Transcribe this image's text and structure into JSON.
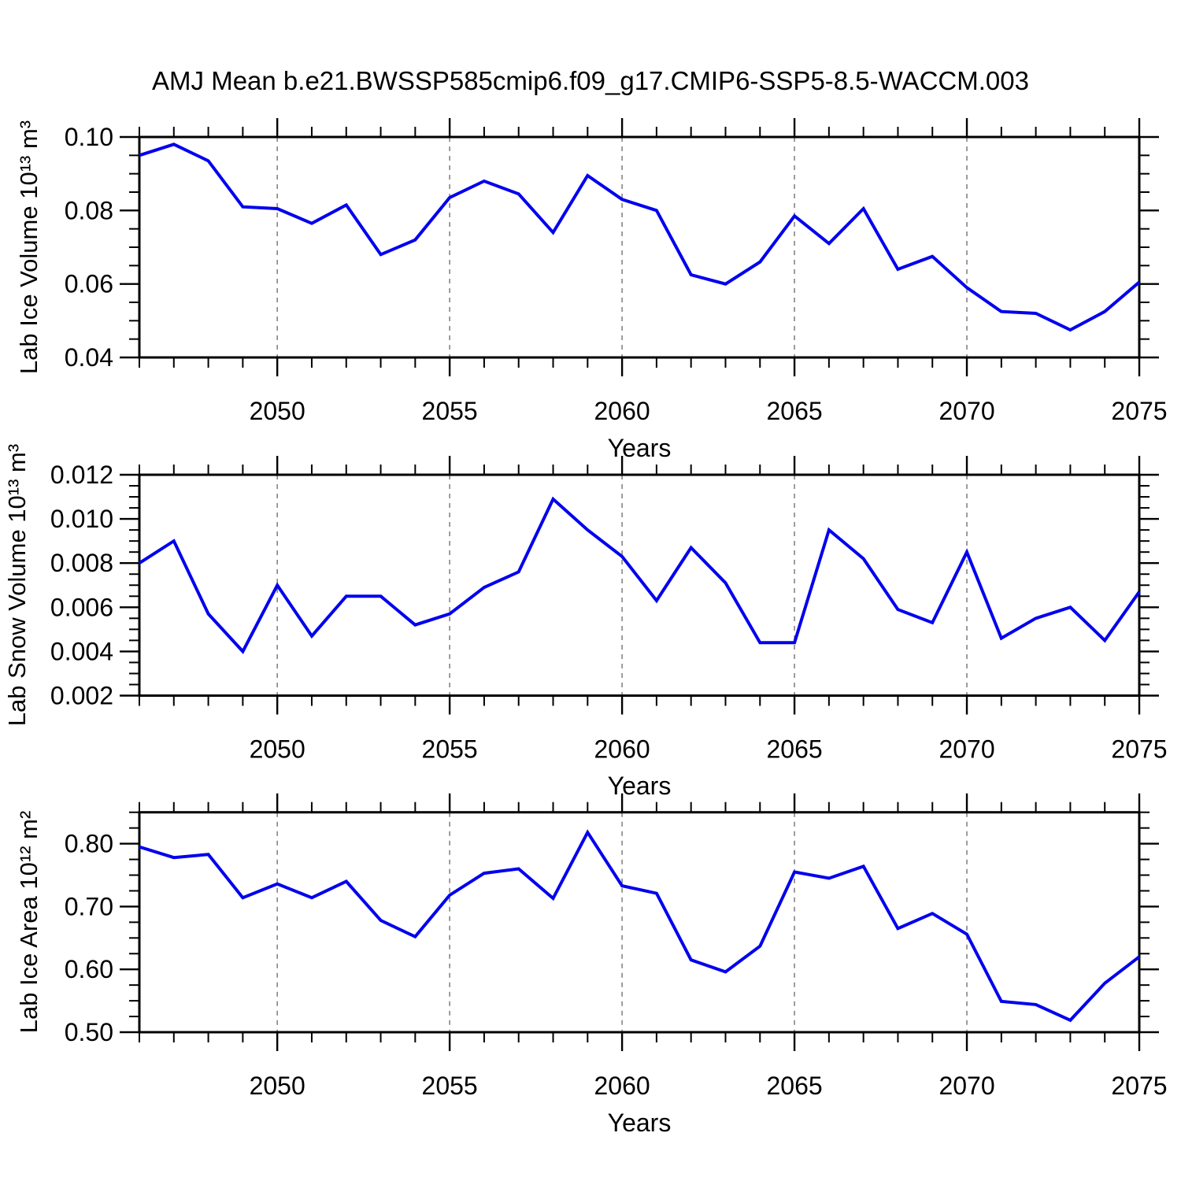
{
  "title": "AMJ Mean b.e21.BWSSP585cmip6.f09_g17.CMIP6-SSP5-8.5-WACCM.003",
  "line_color": "#0000EE",
  "grid_color": "#848484",
  "frame_color": "#000000",
  "chart_data": [
    {
      "type": "line",
      "ylabel": "Lab Ice Volume 10¹³ m³",
      "xlabel": "Years",
      "x": [
        2046,
        2047,
        2048,
        2049,
        2050,
        2051,
        2052,
        2053,
        2054,
        2055,
        2056,
        2057,
        2058,
        2059,
        2060,
        2061,
        2062,
        2063,
        2064,
        2065,
        2066,
        2067,
        2068,
        2069,
        2070,
        2071,
        2072,
        2073,
        2074,
        2075
      ],
      "values": [
        0.095,
        0.098,
        0.0935,
        0.081,
        0.0805,
        0.0765,
        0.0815,
        0.068,
        0.072,
        0.0835,
        0.088,
        0.0845,
        0.074,
        0.0895,
        0.083,
        0.08,
        0.0625,
        0.06,
        0.066,
        0.0785,
        0.071,
        0.0805,
        0.064,
        0.0675,
        0.059,
        0.0525,
        0.052,
        0.0475,
        0.0525,
        0.0605
      ],
      "xlim": [
        2046,
        2075
      ],
      "ylim": [
        0.04,
        0.1
      ],
      "y_major_ticks": [
        0.04,
        0.06,
        0.08,
        0.1
      ],
      "y_tick_labels": [
        "0.04",
        "0.06",
        "0.08",
        "0.10"
      ],
      "y_minor_step": 0.005,
      "x_major_ticks": [
        2050,
        2055,
        2060,
        2065,
        2070,
        2075
      ],
      "x_tick_labels": [
        "2050",
        "2055",
        "2060",
        "2065",
        "2070",
        "2075"
      ],
      "x_gridlines": [
        2050,
        2055,
        2060,
        2065,
        2070
      ],
      "grid": "vertical-dashed",
      "legend": "none"
    },
    {
      "type": "line",
      "ylabel": "Lab Snow Volume 10¹³ m³",
      "xlabel": "Years",
      "x": [
        2046,
        2047,
        2048,
        2049,
        2050,
        2051,
        2052,
        2053,
        2054,
        2055,
        2056,
        2057,
        2058,
        2059,
        2060,
        2061,
        2062,
        2063,
        2064,
        2065,
        2066,
        2067,
        2068,
        2069,
        2070,
        2071,
        2072,
        2073,
        2074,
        2075
      ],
      "values": [
        0.008,
        0.009,
        0.0057,
        0.004,
        0.007,
        0.0047,
        0.0065,
        0.0065,
        0.0052,
        0.0057,
        0.0069,
        0.0076,
        0.0109,
        0.0095,
        0.0083,
        0.0063,
        0.0087,
        0.0071,
        0.0044,
        0.0044,
        0.0095,
        0.0082,
        0.0059,
        0.0053,
        0.0085,
        0.0046,
        0.0055,
        0.006,
        0.0045,
        0.0067
      ],
      "xlim": [
        2046,
        2075
      ],
      "ylim": [
        0.002,
        0.012
      ],
      "y_major_ticks": [
        0.002,
        0.004,
        0.006,
        0.008,
        0.01,
        0.012
      ],
      "y_tick_labels": [
        "0.002",
        "0.004",
        "0.006",
        "0.008",
        "0.010",
        "0.012"
      ],
      "y_minor_step": 0.0005,
      "x_major_ticks": [
        2050,
        2055,
        2060,
        2065,
        2070,
        2075
      ],
      "x_tick_labels": [
        "2050",
        "2055",
        "2060",
        "2065",
        "2070",
        "2075"
      ],
      "x_gridlines": [
        2050,
        2055,
        2060,
        2065,
        2070
      ],
      "grid": "vertical-dashed",
      "legend": "none"
    },
    {
      "type": "line",
      "ylabel": "Lab Ice Area 10¹² m²",
      "xlabel": "Years",
      "x": [
        2046,
        2047,
        2048,
        2049,
        2050,
        2051,
        2052,
        2053,
        2054,
        2055,
        2056,
        2057,
        2058,
        2059,
        2060,
        2061,
        2062,
        2063,
        2064,
        2065,
        2066,
        2067,
        2068,
        2069,
        2070,
        2071,
        2072,
        2073,
        2074,
        2075
      ],
      "values": [
        0.795,
        0.778,
        0.783,
        0.714,
        0.736,
        0.714,
        0.74,
        0.678,
        0.652,
        0.718,
        0.753,
        0.76,
        0.713,
        0.818,
        0.733,
        0.721,
        0.615,
        0.596,
        0.637,
        0.755,
        0.745,
        0.764,
        0.665,
        0.689,
        0.656,
        0.549,
        0.544,
        0.519,
        0.578,
        0.62
      ],
      "xlim": [
        2046,
        2075
      ],
      "ylim": [
        0.5,
        0.85
      ],
      "y_major_ticks": [
        0.5,
        0.6,
        0.7,
        0.8
      ],
      "y_tick_labels": [
        "0.50",
        "0.60",
        "0.70",
        "0.80"
      ],
      "y_minor_step": 0.025,
      "x_major_ticks": [
        2050,
        2055,
        2060,
        2065,
        2070,
        2075
      ],
      "x_tick_labels": [
        "2050",
        "2055",
        "2060",
        "2065",
        "2070",
        "2075"
      ],
      "x_gridlines": [
        2050,
        2055,
        2060,
        2065,
        2070
      ],
      "grid": "vertical-dashed",
      "legend": "none"
    }
  ]
}
